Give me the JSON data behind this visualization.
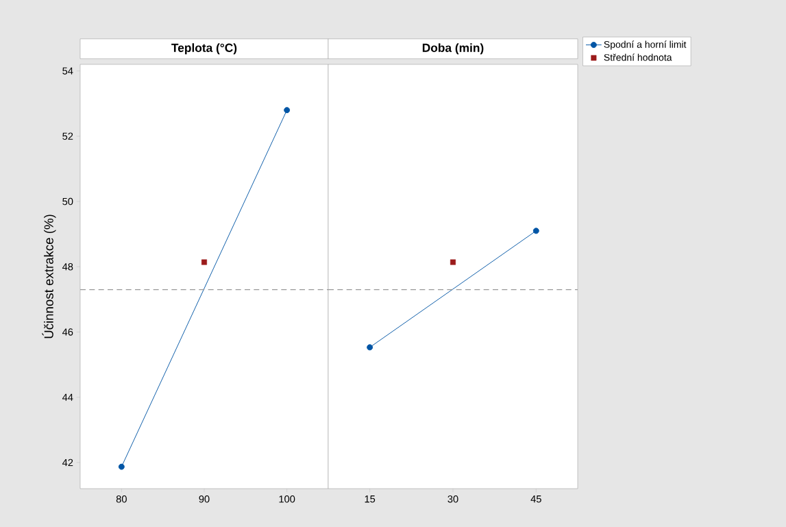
{
  "chart_data": [
    {
      "type": "line",
      "title": "Teplota (°C)",
      "ylabel": "Účinnost extrakce (%)",
      "xlim": [
        75,
        105
      ],
      "xticks": [
        80,
        90,
        100
      ],
      "ylim": [
        41.2,
        54.2
      ],
      "yticks": [
        42,
        44,
        46,
        48,
        50,
        52,
        54
      ],
      "legend": false,
      "series": [
        {
          "color": "#0055a5",
          "marker": "circle",
          "x": [
            80,
            100
          ],
          "values": [
            41.87,
            52.8
          ]
        },
        {
          "type": "scatter",
          "color": "#9b1b1b",
          "marker": "square",
          "x": [
            90
          ],
          "values": [
            48.14
          ]
        }
      ],
      "ref_lines": [
        {
          "axis": "y",
          "value": 47.3,
          "color": "#999999",
          "line_style": "dashed"
        }
      ]
    },
    {
      "type": "line",
      "title": "Doba (min)",
      "xlim": [
        7.5,
        52.5
      ],
      "xticks": [
        15,
        30,
        45
      ],
      "ylim": [
        41.2,
        54.2
      ],
      "yticks": [
        42,
        44,
        46,
        48,
        50,
        52,
        54
      ],
      "tick_labels": "x",
      "legend": "right",
      "series": [
        {
          "name": "Spodní a horní limit",
          "color": "#0055a5",
          "marker": "circle",
          "x": [
            15,
            45
          ],
          "values": [
            45.53,
            49.1
          ]
        },
        {
          "type": "scatter",
          "name": "Střední hodnota",
          "color": "#9b1b1b",
          "marker": "square",
          "x": [
            30
          ],
          "values": [
            48.14
          ]
        }
      ],
      "ref_lines": [
        {
          "axis": "y",
          "value": 47.3,
          "color": "#999999",
          "line_style": "dashed"
        }
      ]
    }
  ]
}
